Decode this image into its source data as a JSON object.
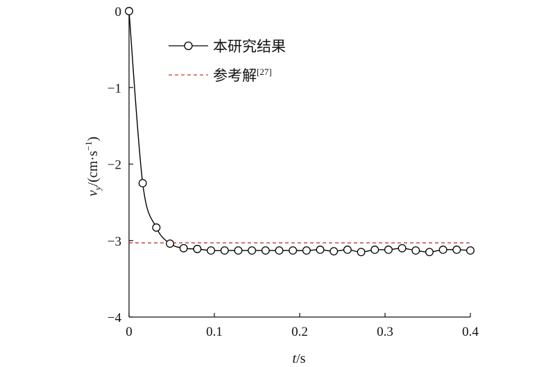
{
  "chart_data": {
    "type": "line",
    "xlabel": "t/s",
    "ylabel": "v_y/(cm·s⁻¹)",
    "xlim": [
      0,
      0.4
    ],
    "ylim": [
      -4,
      0
    ],
    "x_ticks": [
      "0",
      "0.1",
      "0.2",
      "0.3",
      "0.4"
    ],
    "y_ticks": [
      "0",
      "−1",
      "−2",
      "−3",
      "−4"
    ],
    "grid": false,
    "legend_position": "top-left",
    "series": [
      {
        "name": "本研究结果",
        "style": "solid-line-with-open-circles",
        "color": "#000000",
        "x": [
          0,
          0.016,
          0.032,
          0.048,
          0.064,
          0.08,
          0.096,
          0.112,
          0.128,
          0.144,
          0.16,
          0.176,
          0.192,
          0.208,
          0.224,
          0.24,
          0.256,
          0.272,
          0.288,
          0.304,
          0.32,
          0.336,
          0.352,
          0.368,
          0.384,
          0.4
        ],
        "y": [
          0,
          -2.25,
          -2.83,
          -3.04,
          -3.1,
          -3.11,
          -3.13,
          -3.13,
          -3.13,
          -3.13,
          -3.13,
          -3.13,
          -3.13,
          -3.13,
          -3.12,
          -3.14,
          -3.12,
          -3.15,
          -3.12,
          -3.12,
          -3.1,
          -3.13,
          -3.15,
          -3.12,
          -3.12,
          -3.13
        ]
      },
      {
        "name": "参考解",
        "citation": "[27]",
        "style": "dashed-line",
        "color": "#c0392b",
        "x": [
          0,
          0.4
        ],
        "y": [
          -3.03,
          -3.03
        ]
      }
    ]
  }
}
